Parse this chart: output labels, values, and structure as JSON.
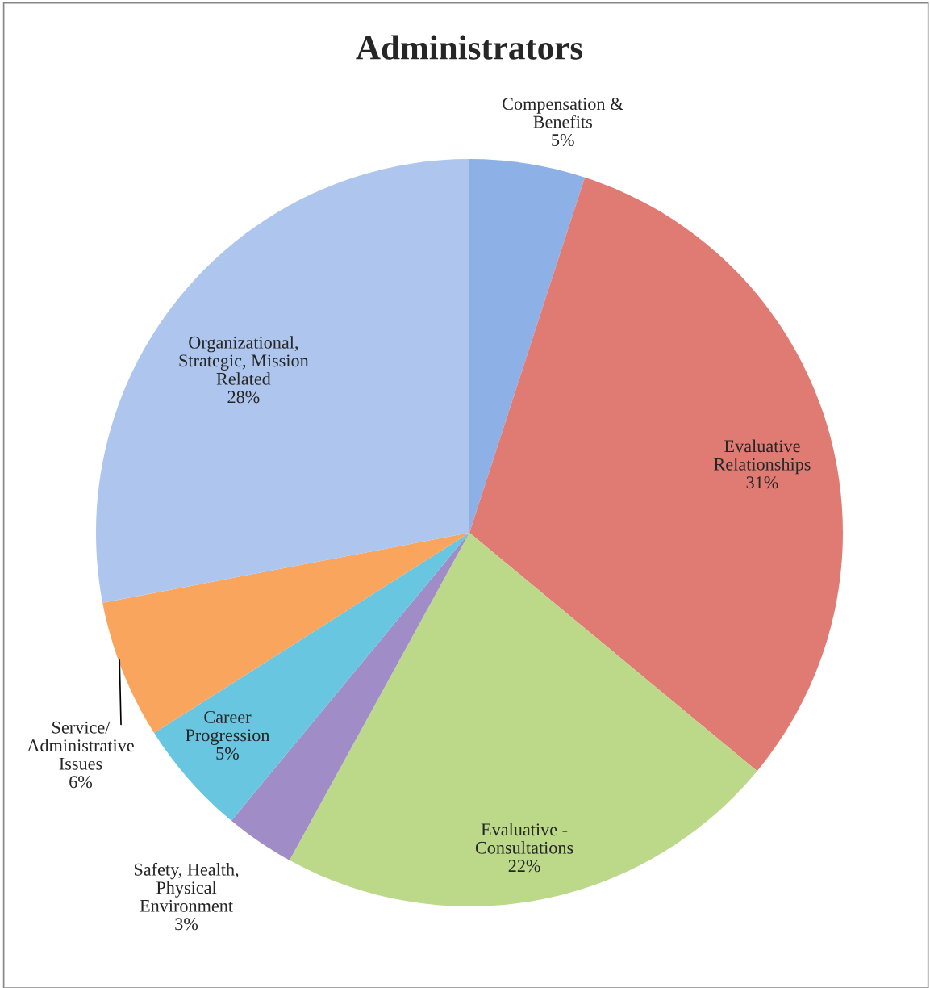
{
  "chart_data": {
    "type": "pie",
    "title": "Administrators",
    "categories": [
      "Compensation &\nBenefits",
      "Evaluative\nRelationships",
      "Evaluative -\nConsultations",
      "Safety, Health,\nPhysical\nEnvironment",
      "Career\nProgression",
      "Service/\nAdministrative\nIssues",
      "Organizational,\nStrategic, Mission\nRelated"
    ],
    "values": [
      5,
      31,
      22,
      3,
      5,
      6,
      28
    ],
    "value_labels": [
      "5%",
      "31%",
      "22%",
      "3%",
      "5%",
      "6%",
      "28%"
    ],
    "colors": [
      "#8db0e6",
      "#e07b74",
      "#bcd98a",
      "#a08cc6",
      "#68c6e0",
      "#f9a55e",
      "#aec6ee"
    ]
  }
}
